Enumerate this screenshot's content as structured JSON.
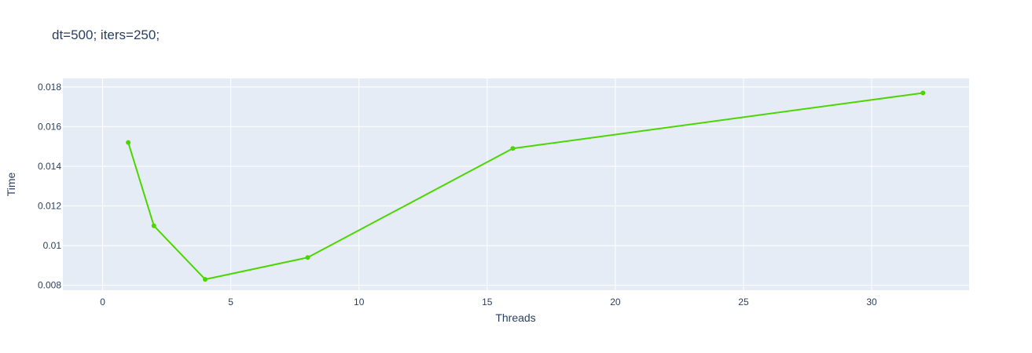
{
  "chart_data": {
    "type": "line",
    "title": "dt=500; iters=250;",
    "xlabel": "Threads",
    "ylabel": "Time",
    "xlim": [
      -1.55,
      33.8
    ],
    "ylim": [
      0.00775,
      0.01843
    ],
    "xticks": [
      0,
      5,
      10,
      15,
      20,
      25,
      30
    ],
    "xtick_labels": [
      "0",
      "5",
      "10",
      "15",
      "20",
      "25",
      "30"
    ],
    "yticks": [
      0.008,
      0.01,
      0.012,
      0.014,
      0.016,
      0.018
    ],
    "ytick_labels": [
      "0.008",
      "0.01",
      "0.012",
      "0.014",
      "0.016",
      "0.018"
    ],
    "grid": true,
    "background": "#e5ecf6",
    "series": [
      {
        "color": "#4cd600",
        "x": [
          1,
          2,
          4,
          8,
          16,
          32
        ],
        "y": [
          0.0152,
          0.011,
          0.0083,
          0.0094,
          0.0149,
          0.0177
        ]
      }
    ]
  }
}
